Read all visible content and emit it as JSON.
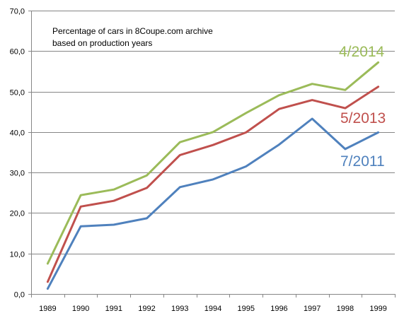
{
  "chart_data": {
    "type": "line",
    "title": "",
    "note": [
      "Percentage of cars in 8Coupe.com archive",
      "based on production years"
    ],
    "xlabel": "",
    "ylabel": "",
    "categories": [
      "1989",
      "1990",
      "1991",
      "1992",
      "1993",
      "1994",
      "1995",
      "1996",
      "1997",
      "1998",
      "1999"
    ],
    "ylim": [
      0,
      70
    ],
    "yticks": [
      "0,0",
      "10,0",
      "20,0",
      "30,0",
      "40,0",
      "50,0",
      "60,0",
      "70,0"
    ],
    "grid": true,
    "series": [
      {
        "name": "4/2014",
        "color": "#9bbb59",
        "values": [
          7.5,
          24.4,
          25.8,
          29.3,
          37.5,
          40.0,
          44.7,
          49.1,
          51.9,
          50.4,
          57.2
        ]
      },
      {
        "name": "5/2013",
        "color": "#c0504d",
        "values": [
          3.0,
          21.6,
          23.0,
          26.2,
          34.3,
          36.8,
          39.9,
          45.7,
          47.9,
          45.9,
          51.2
        ]
      },
      {
        "name": "7/2011",
        "color": "#4f81bd",
        "values": [
          1.3,
          16.7,
          17.1,
          18.7,
          26.4,
          28.3,
          31.5,
          36.9,
          43.3,
          35.8,
          39.9
        ]
      }
    ]
  }
}
